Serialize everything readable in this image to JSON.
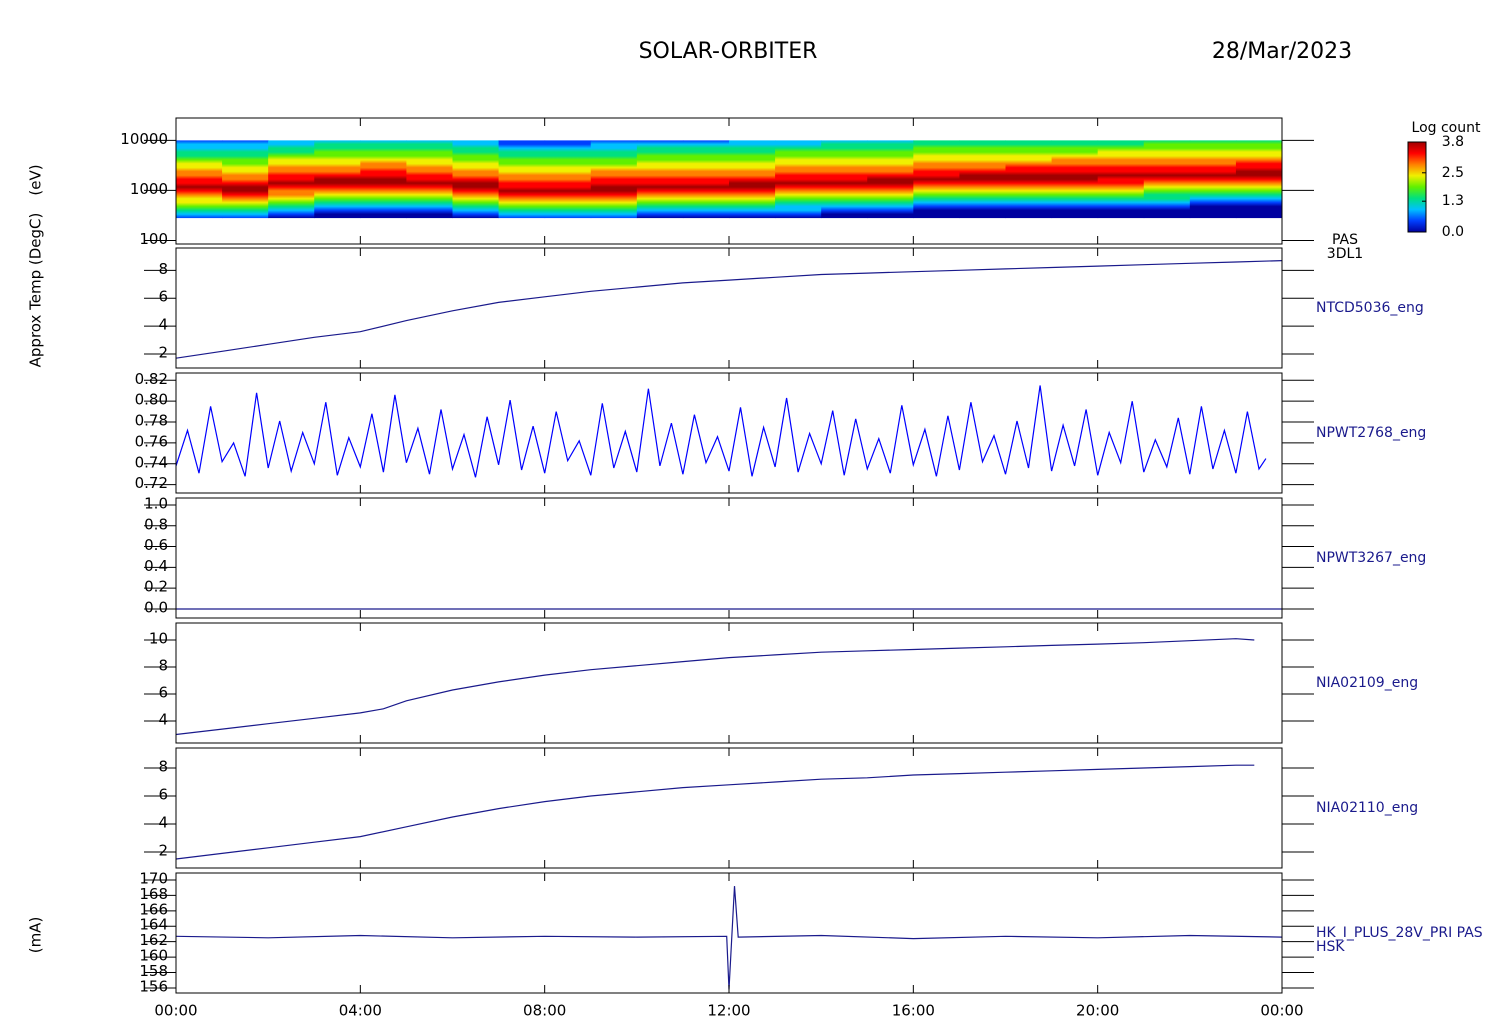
{
  "header": {
    "title": "SOLAR-ORBITER",
    "date": "28/Mar/2023"
  },
  "chart_data": [
    {
      "type": "spectrogram",
      "y_label": "(eV)",
      "label_lines": [
        "PAS",
        "3DL1"
      ],
      "log_y": true,
      "xlim": [
        0,
        24
      ],
      "ylim": [
        85,
        28000
      ],
      "yticks": [
        100,
        1000,
        10000
      ],
      "bins": [
        0,
        1,
        2,
        3,
        4,
        5,
        6,
        7,
        8,
        9,
        10,
        11,
        12,
        13,
        14,
        15,
        16,
        17,
        18,
        19,
        20,
        21,
        22,
        23,
        24
      ],
      "band_limits": [
        280,
        10000
      ],
      "peak_energy": [
        1100,
        1000,
        1300,
        1450,
        1500,
        1400,
        1200,
        950,
        950,
        1050,
        1150,
        1150,
        1200,
        1350,
        1400,
        1450,
        1650,
        1700,
        1750,
        1800,
        1850,
        1900,
        2000,
        2100
      ],
      "colorbar": {
        "label": "Log count",
        "clim": [
          0,
          3.8
        ],
        "ticks": [
          {
            "value": 0,
            "label": "0.0"
          },
          1.3,
          2.5,
          3.8
        ],
        "colors": [
          "#0000a0",
          "#0040ff",
          "#00c0ff",
          "#00e080",
          "#60f000",
          "#f0f000",
          "#ff8000",
          "#ff0000",
          "#a00000"
        ]
      }
    },
    {
      "type": "line",
      "y_label": "Approx Temp (DegC)",
      "label_lines": [
        "NTCD5036_eng"
      ],
      "color": "#1a1a8c",
      "xlim": [
        0,
        24
      ],
      "ylim": [
        1,
        9.6
      ],
      "yticks": [
        2,
        4,
        6,
        8
      ],
      "x": [
        0,
        1,
        2,
        3,
        4,
        5,
        6,
        7,
        8,
        9,
        10,
        11,
        12,
        13,
        14,
        15,
        16,
        17,
        18,
        19,
        20,
        21,
        22,
        23,
        24
      ],
      "values": [
        1.7,
        2.2,
        2.7,
        3.2,
        3.6,
        4.4,
        5.1,
        5.7,
        6.1,
        6.5,
        6.8,
        7.1,
        7.3,
        7.5,
        7.7,
        7.8,
        7.9,
        8.0,
        8.1,
        8.2,
        8.3,
        8.4,
        8.5,
        8.6,
        8.7
      ]
    },
    {
      "type": "line",
      "label_lines": [
        "NPWT2768_eng"
      ],
      "color": "#0000ff",
      "xlim": [
        0,
        24
      ],
      "ylim": [
        0.712,
        0.827
      ],
      "yticks": [
        0.72,
        0.74,
        0.76,
        0.78,
        {
          "value": 0.8,
          "label": "0.80"
        },
        0.82
      ],
      "x": [
        0,
        0.25,
        0.5,
        0.75,
        1,
        1.25,
        1.5,
        1.75,
        2,
        2.25,
        2.5,
        2.75,
        3,
        3.25,
        3.5,
        3.75,
        4,
        4.25,
        4.5,
        4.75,
        5,
        5.25,
        5.5,
        5.75,
        6,
        6.25,
        6.5,
        6.75,
        7,
        7.25,
        7.5,
        7.75,
        8,
        8.25,
        8.5,
        8.75,
        9,
        9.25,
        9.5,
        9.75,
        10,
        10.25,
        10.5,
        10.75,
        11,
        11.25,
        11.5,
        11.75,
        12,
        12.25,
        12.5,
        12.75,
        13,
        13.25,
        13.5,
        13.75,
        14,
        14.25,
        14.5,
        14.75,
        15,
        15.25,
        15.5,
        15.75,
        16,
        16.25,
        16.5,
        16.75,
        17,
        17.25,
        17.5,
        17.75,
        18,
        18.25,
        18.5,
        18.75,
        19,
        19.25,
        19.5,
        19.75,
        20,
        20.25,
        20.5,
        20.75,
        21,
        21.25,
        21.5,
        21.75,
        22,
        22.25,
        22.5,
        22.75,
        23,
        23.25,
        23.5,
        23.65
      ],
      "values": [
        0.738,
        0.772,
        0.731,
        0.795,
        0.742,
        0.76,
        0.728,
        0.808,
        0.736,
        0.781,
        0.733,
        0.77,
        0.74,
        0.799,
        0.729,
        0.765,
        0.737,
        0.788,
        0.732,
        0.806,
        0.741,
        0.774,
        0.73,
        0.792,
        0.735,
        0.768,
        0.727,
        0.785,
        0.739,
        0.801,
        0.734,
        0.776,
        0.731,
        0.79,
        0.743,
        0.762,
        0.729,
        0.798,
        0.736,
        0.771,
        0.732,
        0.812,
        0.738,
        0.779,
        0.73,
        0.787,
        0.741,
        0.766,
        0.733,
        0.794,
        0.728,
        0.775,
        0.737,
        0.803,
        0.732,
        0.769,
        0.74,
        0.791,
        0.729,
        0.783,
        0.735,
        0.764,
        0.731,
        0.796,
        0.739,
        0.773,
        0.728,
        0.786,
        0.734,
        0.799,
        0.742,
        0.767,
        0.73,
        0.781,
        0.736,
        0.815,
        0.733,
        0.777,
        0.738,
        0.792,
        0.729,
        0.77,
        0.741,
        0.8,
        0.732,
        0.763,
        0.737,
        0.784,
        0.73,
        0.795,
        0.735,
        0.772,
        0.731,
        0.79,
        0.735,
        0.745
      ]
    },
    {
      "type": "line",
      "label_lines": [
        "NPWT3267_eng"
      ],
      "color": "#1a1a8c",
      "xlim": [
        0,
        24
      ],
      "ylim": [
        -0.087,
        1.067
      ],
      "yticks": [
        {
          "value": 0,
          "label": "0.0"
        },
        0.2,
        0.4,
        0.6,
        0.8,
        {
          "value": 1,
          "label": "1.0"
        }
      ],
      "x": [
        0,
        24
      ],
      "values": [
        0,
        0
      ]
    },
    {
      "type": "line",
      "label_lines": [
        "NIA02109_eng"
      ],
      "color": "#1a1a8c",
      "xlim": [
        0,
        24
      ],
      "ylim": [
        2.37,
        11.26
      ],
      "yticks": [
        4,
        6,
        8,
        10
      ],
      "x": [
        0,
        1,
        2,
        3,
        4,
        4.5,
        5,
        6,
        7,
        8,
        9,
        10,
        11,
        12,
        13,
        14,
        15,
        16,
        17,
        18,
        19,
        20,
        21,
        22,
        23,
        23.4
      ],
      "values": [
        3.0,
        3.4,
        3.8,
        4.2,
        4.6,
        4.9,
        5.5,
        6.3,
        6.9,
        7.4,
        7.8,
        8.1,
        8.4,
        8.7,
        8.9,
        9.1,
        9.2,
        9.3,
        9.4,
        9.5,
        9.6,
        9.7,
        9.8,
        9.95,
        10.1,
        10.0
      ]
    },
    {
      "type": "line",
      "label_lines": [
        "NIA02110_eng"
      ],
      "color": "#1a1a8c",
      "xlim": [
        0,
        24
      ],
      "ylim": [
        0.86,
        9.43
      ],
      "yticks": [
        2,
        4,
        6,
        8
      ],
      "x": [
        0,
        1,
        2,
        3,
        4,
        5,
        6,
        7,
        8,
        9,
        10,
        11,
        12,
        13,
        14,
        15,
        16,
        17,
        18,
        19,
        20,
        21,
        22,
        23,
        23.4
      ],
      "values": [
        1.5,
        1.9,
        2.3,
        2.7,
        3.1,
        3.8,
        4.5,
        5.1,
        5.6,
        6.0,
        6.3,
        6.6,
        6.8,
        7.0,
        7.2,
        7.3,
        7.5,
        7.6,
        7.7,
        7.8,
        7.9,
        8.0,
        8.1,
        8.2,
        8.2
      ]
    },
    {
      "type": "line",
      "y_label": "(mA)",
      "label_lines": [
        "HK_I_PLUS_28V_PRI PAS",
        "HSK"
      ],
      "color": "#1a1a8c",
      "xlim": [
        0,
        24
      ],
      "ylim": [
        155.35,
        170.9
      ],
      "yticks": [
        156,
        158,
        160,
        162,
        164,
        166,
        168,
        170
      ],
      "xticks": [
        {
          "value": 0,
          "label": "00:00"
        },
        {
          "value": 4,
          "label": "04:00"
        },
        {
          "value": 8,
          "label": "08:00"
        },
        {
          "value": 12,
          "label": "12:00"
        },
        {
          "value": 16,
          "label": "16:00"
        },
        {
          "value": 20,
          "label": "20:00"
        },
        {
          "value": 24,
          "label": "00:00"
        }
      ],
      "x": [
        0,
        2,
        4,
        6,
        8,
        10,
        11.95,
        12.0,
        12.12,
        12.2,
        14,
        16,
        18,
        20,
        22,
        24
      ],
      "values": [
        162.7,
        162.5,
        162.8,
        162.5,
        162.7,
        162.6,
        162.7,
        155.8,
        169.2,
        162.6,
        162.8,
        162.4,
        162.7,
        162.5,
        162.8,
        162.6
      ]
    }
  ]
}
